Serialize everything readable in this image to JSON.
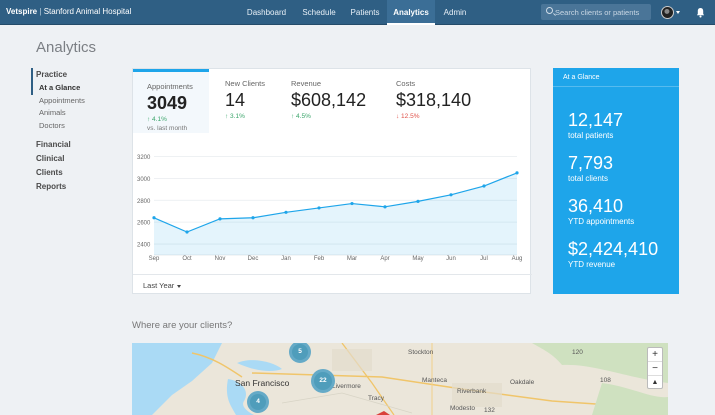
{
  "nav": {
    "brand_name": "Vetspire",
    "brand_sep": "|",
    "brand_clinic": "Stanford Animal Hospital",
    "links": [
      "Dashboard",
      "Schedule",
      "Patients",
      "Analytics",
      "Admin"
    ],
    "active": "Analytics",
    "search_placeholder": "Search clients or patients"
  },
  "page": {
    "title": "Analytics"
  },
  "sidebar": {
    "practice": "Practice",
    "practice_items": [
      "At a Glance",
      "Appointments",
      "Animals",
      "Doctors"
    ],
    "selected": "At a Glance",
    "other_groups": [
      "Financial",
      "Clinical",
      "Clients",
      "Reports"
    ]
  },
  "stats": [
    {
      "label": "Appointments",
      "value": "3049",
      "change": "↑ 4.1%",
      "direction": "up",
      "note": "vs. last month"
    },
    {
      "label": "New Clients",
      "value": "14",
      "change": "↑ 3.1%",
      "direction": "up"
    },
    {
      "label": "Revenue",
      "value": "$608,142",
      "change": "↑ 4.5%",
      "direction": "up"
    },
    {
      "label": "Costs",
      "value": "$318,140",
      "change": "↓ 12.5%",
      "direction": "down"
    }
  ],
  "chart_data": {
    "type": "line",
    "categories": [
      "Sep",
      "Oct",
      "Nov",
      "Dec",
      "Jan",
      "Feb",
      "Mar",
      "Apr",
      "May",
      "Jun",
      "Jul",
      "Aug"
    ],
    "values": [
      2640,
      2510,
      2630,
      2640,
      2690,
      2730,
      2770,
      2740,
      2790,
      2850,
      2930,
      3050
    ],
    "yticks": [
      2400,
      2600,
      2800,
      3000,
      3200
    ],
    "ylim": [
      2300,
      3250
    ],
    "grid": true,
    "color": "#1ea5ea"
  },
  "range_selector": "Last Year",
  "glance": {
    "header": "At a Glance",
    "items": [
      {
        "number": "12,147",
        "text": "total patients"
      },
      {
        "number": "7,793",
        "text": "total clients"
      },
      {
        "number": "36,410",
        "text": "YTD appointments"
      },
      {
        "number": "$2,424,410",
        "text": "YTD revenue"
      }
    ]
  },
  "map": {
    "heading": "Where are your clients?",
    "clusters": [
      "5",
      "22",
      "4"
    ],
    "places": [
      "Stockton",
      "San Francisco",
      "Manteca",
      "Riverbank",
      "Modesto",
      "Oakdale",
      "Livermore",
      "Tracy"
    ],
    "road_markers": [
      "120",
      "108",
      "132"
    ],
    "zoom_in": "+",
    "zoom_out": "−",
    "compass": "▲"
  }
}
